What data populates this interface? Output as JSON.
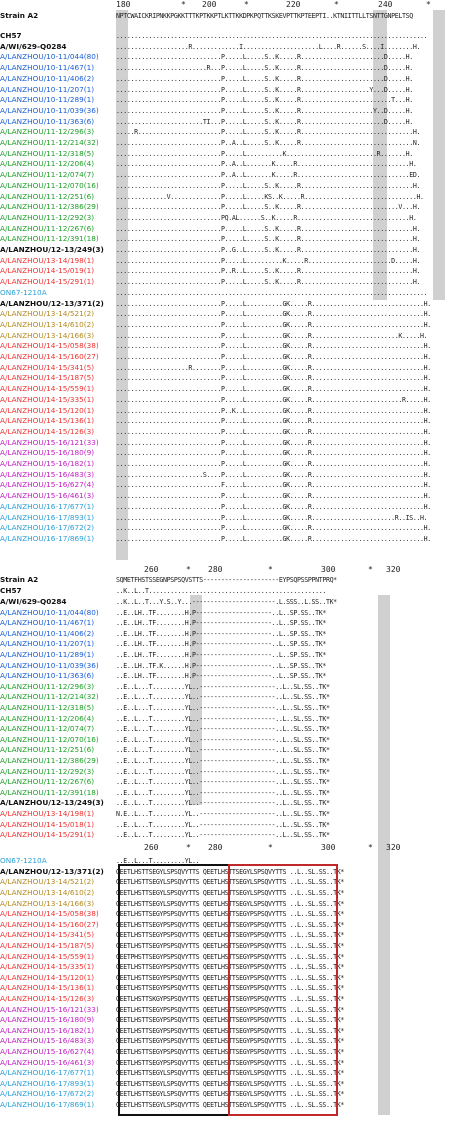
{
  "panel1": {
    "ruler": [
      "180",
      "*",
      "200",
      "*",
      "220",
      "*",
      "240",
      "*"
    ],
    "header_name": "Strain A2",
    "header_seq": "NPTCWAICKRIPNKKPGKKTTTKPTKKPTLKTTKKDPKPQTTKSKEVPTTKPTEEPTI..KTNIITTLLTSNTTGNPELTSQ",
    "rows": [
      {
        "name": "CH57",
        "color": "#111",
        "bold": true,
        "seq": "......................................................................................"
      },
      {
        "name": "A/WI/629-Q0284",
        "color": "#111",
        "bold": true,
        "seq": "....................R.............I.....................L....R......S....I........H."
      },
      {
        "name": "A/LANZHOU/10-11/044(80)",
        "color": "#1a5fd6",
        "seq": ".............................P.....L.....S..K.....R.......................D.....H."
      },
      {
        "name": "A/LANZHOU/10-11/467(1)",
        "color": "#1a5fd6",
        "seq": ".........................R...P.....L.....S..K.....R.......................D.....H."
      },
      {
        "name": "A/LANZHOU/10-11/406(2)",
        "color": "#1a5fd6",
        "seq": ".............................P.....L.....S..K.....R.......................D.....H."
      },
      {
        "name": "A/LANZHOU/10-11/207(1)",
        "color": "#1a5fd6",
        "seq": ".............................P.....L.....S..K.....R...................Y...D.....H."
      },
      {
        "name": "A/LANZHOU/10-11/289(1)",
        "color": "#1a5fd6",
        "seq": ".............................P.....L.....S..K.....R.........................T...H."
      },
      {
        "name": "A/LANZHOU/10-11/039(36)",
        "color": "#1a5fd6",
        "seq": ".............................P.....L.....S..K.....R....................Y..D.....H."
      },
      {
        "name": "A/LANZHOU/10-11/363(6)",
        "color": "#1a5fd6",
        "seq": "........................TI...P.....L.....S..K.....R.......................D.....H."
      },
      {
        "name": "A/LANZHOU/11-12/296(3)",
        "color": "#1fa02a",
        "seq": ".....R.......................P.....L.....S..K.....R...............................H."
      },
      {
        "name": "A/LANZHOU/11-12/214(32)",
        "color": "#1fa02a",
        "seq": ".............................P..A..L.....S..K.....R...............................N."
      },
      {
        "name": "A/LANZHOU/11-12/318(5)",
        "color": "#1fa02a",
        "seq": ".............................P.....L..........K.........................R.......H."
      },
      {
        "name": "A/LANZHOU/11-12/206(4)",
        "color": "#1fa02a",
        "seq": ".............................P..A..L.......K.....R...............................H."
      },
      {
        "name": "A/LANZHOU/11-12/074(7)",
        "color": "#1fa02a",
        "seq": ".............................P..A..L.......K.....R...............................ED."
      },
      {
        "name": "A/LANZHOU/11-12/070(16)",
        "color": "#1fa02a",
        "seq": ".............................P.....L.....S..K.....R...............................H."
      },
      {
        "name": "A/LANZHOU/11-12/251(6)",
        "color": "#1fa02a",
        "seq": "..............V..............P.....L.....KS..K.....R...............................H."
      },
      {
        "name": "A/LANZHOU/11-12/386(29)",
        "color": "#1fa02a",
        "seq": ".............................P.....L.....S..K.....R...........................V...H."
      },
      {
        "name": "A/LANZHOU/11-12/292(3)",
        "color": "#1fa02a",
        "seq": ".............................PQ.AL......S..K.....R...............................H."
      },
      {
        "name": "A/LANZHOU/11-12/267(6)",
        "color": "#1fa02a",
        "seq": ".............................P.....L.....S..K.....R...............................H."
      },
      {
        "name": "A/LANZHOU/11-12/391(18)",
        "color": "#1fa02a",
        "seq": ".............................P.....L.....S..K.....R...............................H."
      },
      {
        "name": "A/LANZHOU/12-13/249(3)",
        "color": "#111",
        "bold": true,
        "seq": ".............................P..G..L.....S..K.....R...............................H."
      },
      {
        "name": "A/LANZHOU/13-14/198(1)",
        "color": "#e33",
        "seq": ".............................P.....L..........K.....R.......................D.....H."
      },
      {
        "name": "A/LANZHOU/14-15/019(1)",
        "color": "#e33",
        "seq": ".............................P..R..L.....S..K.....R...............................H."
      },
      {
        "name": "A/LANZHOU/14-15/291(1)",
        "color": "#e33",
        "seq": ".............................P.....L.....S..K.....R...............................H."
      },
      {
        "name": "ON67-1210A",
        "color": "#2aa0d8",
        "seq": "......................................................................................"
      },
      {
        "name": "A/LANZHOU/12-13/371(2)",
        "color": "#111",
        "bold": true,
        "seq": ".............................P.....L..........GK.....R...............................H."
      },
      {
        "name": "A/LANZHOU/13-14/521(2)",
        "color": "#b58a1e",
        "seq": ".............................P.....L..........GK.....R...............................H."
      },
      {
        "name": "A/LANZHOU/13-14/610(2)",
        "color": "#b58a1e",
        "seq": ".............................P.....L..........GK.....R...............................H."
      },
      {
        "name": "A/LANZHOU/13-14/166(3)",
        "color": "#b58a1e",
        "seq": ".............................P.....L..........GK.....R........................K.....H."
      },
      {
        "name": "A/LANZHOU/14-15/058(38)",
        "color": "#e33",
        "seq": ".............................P.....L..........GK.....R...............................H."
      },
      {
        "name": "A/LANZHOU/14-15/160(27)",
        "color": "#e33",
        "seq": ".............................P.....L..........GK.....R...............................H."
      },
      {
        "name": "A/LANZHOU/14-15/341(5)",
        "color": "#e33",
        "seq": "....................R........P.....L..........GK.....R...............................H."
      },
      {
        "name": "A/LANZHOU/14-15/187(5)",
        "color": "#e33",
        "seq": ".............................P.....L..........GK.....R...............................H."
      },
      {
        "name": "A/LANZHOU/14-15/559(1)",
        "color": "#e33",
        "seq": ".............................P.....L..........GK.....R...............................H."
      },
      {
        "name": "A/LANZHOU/14-15/335(1)",
        "color": "#e33",
        "seq": ".............................P.....L..........GK.....R.........................R.....H."
      },
      {
        "name": "A/LANZHOU/14-15/120(1)",
        "color": "#e33",
        "seq": ".............................P..K..L..........GK.....R...............................H."
      },
      {
        "name": "A/LANZHOU/14-15/136(1)",
        "color": "#e33",
        "seq": ".............................P.....L..........GK.....R...............................H."
      },
      {
        "name": "A/LANZHOU/14-15/126(3)",
        "color": "#e33",
        "seq": ".............................P.....L..........GK.....R...............................H."
      },
      {
        "name": "A/LANZHOU/15-16/121(33)",
        "color": "#c21fc4",
        "seq": ".............................P.....L..........GK.....R...............................H."
      },
      {
        "name": "A/LANZHOU/15-16/180(9)",
        "color": "#c21fc4",
        "seq": ".............................P.....L..........GK.....R...............................H."
      },
      {
        "name": "A/LANZHOU/15-16/182(1)",
        "color": "#c21fc4",
        "seq": ".............................P.....L..........GK.....R...............................H."
      },
      {
        "name": "A/LANZHOU/15-16/483(3)",
        "color": "#c21fc4",
        "seq": "........................S....P.....L..........GK.....R...............................H."
      },
      {
        "name": "A/LANZHOU/15-16/627(4)",
        "color": "#c21fc4",
        "seq": ".............................F.....L..........GK.....R...............................H."
      },
      {
        "name": "A/LANZHOU/15-16/461(3)",
        "color": "#c21fc4",
        "seq": ".............................P.....L..........GK.....R...............................H."
      },
      {
        "name": "A/LANZHOU/16-17/677(1)",
        "color": "#2aa0d8",
        "seq": ".............................P.....L..........GK.....R...............................H."
      },
      {
        "name": "A/LANZHOU/16-17/893(1)",
        "color": "#2aa0d8",
        "seq": ".............................P.....L..........GK.....R.......................R..IS..H."
      },
      {
        "name": "A/LANZHOU/16-17/672(2)",
        "color": "#2aa0d8",
        "seq": ".............................P.....L..........GK.....R...............................H."
      },
      {
        "name": "A/LANZHOU/16-17/869(1)",
        "color": "#2aa0d8",
        "seq": ".............................P.....L..........GK.....R...............................H."
      }
    ]
  },
  "panel2": {
    "ruler_top": [
      "260",
      "*",
      "280",
      "*",
      "300",
      "*",
      "320"
    ],
    "ruler_mid": [
      "260",
      "*",
      "280",
      "*",
      "300",
      "*",
      "320"
    ],
    "header_name": "Strain A2",
    "header_seq": "SQMETFHSTSSEGNPSPSQVSTTS---------------------EYPSQPSSPPNTPRQ*",
    "ch57_name": "CH57",
    "ch57_seq": "..K..L..T.................................................",
    "rows_a": [
      {
        "name": "A/WI/629-Q0284",
        "color": "#111",
        "bold": true,
        "seq": "..K..L..T...Y.S..Y...-----------------------.L.SSS..L.SS..TK*"
      },
      {
        "name": "A/LANZHOU/10-11/044(80)",
        "color": "#1a5fd6",
        "seq": "..E..LH..TF........H.P---------------------..L..SP.SS..TK*"
      },
      {
        "name": "A/LANZHOU/10-11/467(1)",
        "color": "#1a5fd6",
        "seq": "..E..LH..TF........H.P---------------------..L..SP.SS..TK*"
      },
      {
        "name": "A/LANZHOU/10-11/406(2)",
        "color": "#1a5fd6",
        "seq": "..E..LH..TF........H.P---------------------..L..SP.SS..TK*"
      },
      {
        "name": "A/LANZHOU/10-11/207(1)",
        "color": "#1a5fd6",
        "seq": "..E..LH..TF........H.P---------------------..L..SP.SS..TK*"
      },
      {
        "name": "A/LANZHOU/10-11/289(1)",
        "color": "#1a5fd6",
        "seq": "..E..LH..TF........H.P---------------------..L..SP.SS..TK*"
      },
      {
        "name": "A/LANZHOU/10-11/039(36)",
        "color": "#1a5fd6",
        "seq": "..E..LH..TF.K......H.P---------------------..L..SP.SS..TK*"
      },
      {
        "name": "A/LANZHOU/10-11/363(6)",
        "color": "#1a5fd6",
        "seq": "..E..LH..TF........H.P---------------------..L..SP.SS..TK*"
      },
      {
        "name": "A/LANZHOU/11-12/296(3)",
        "color": "#1fa02a",
        "seq": "..E..L...T.........YL..---------------------..L..SL.SS..TK*"
      },
      {
        "name": "A/LANZHOU/11-12/214(32)",
        "color": "#1fa02a",
        "seq": "..E..L...T.........YL..---------------------..L..SL.SS..TK*"
      },
      {
        "name": "A/LANZHOU/11-12/318(5)",
        "color": "#1fa02a",
        "seq": "..E..L...T.........YL..---------------------..L..SL.SS..TK*"
      },
      {
        "name": "A/LANZHOU/11-12/206(4)",
        "color": "#1fa02a",
        "seq": "..E..L...T.........YL..---------------------..L..SL.SS..TK*"
      },
      {
        "name": "A/LANZHOU/11-12/074(7)",
        "color": "#1fa02a",
        "seq": "..E..L...T.........YL..---------------------..L..SL.SS..TK*"
      },
      {
        "name": "A/LANZHOU/11-12/070(16)",
        "color": "#1fa02a",
        "seq": "..E..L...T.........YL..---------------------..L..SL.SS..TK*"
      },
      {
        "name": "A/LANZHOU/11-12/251(6)",
        "color": "#1fa02a",
        "seq": "..E..L...T.........YL..---------------------..L..SL.SS..TK*"
      },
      {
        "name": "A/LANZHOU/11-12/386(29)",
        "color": "#1fa02a",
        "seq": "..E..L...T.........YL..---------------------..L..SL.SS..TK*"
      },
      {
        "name": "A/LANZHOU/11-12/292(3)",
        "color": "#1fa02a",
        "seq": "..E..L...T.........YL..---------------------..L..SL.SS..TK*"
      },
      {
        "name": "A/LANZHOU/11-12/267(6)",
        "color": "#1fa02a",
        "seq": "..E..L...T.........YL..---------------------..L..SL.SS..TK*"
      },
      {
        "name": "A/LANZHOU/11-12/391(18)",
        "color": "#1fa02a",
        "seq": "..E..L...T.........YL..---------------------..L..SL.SS..TK*"
      },
      {
        "name": "A/LANZHOU/12-13/249(3)",
        "color": "#111",
        "bold": true,
        "seq": "..E..L...T.........YL..---------------------..L..SL.SS..TK*"
      },
      {
        "name": "A/LANZHOU/13-14/198(1)",
        "color": "#e33",
        "seq": "N.E..L...T.........YL..---------------------..L..SL.SS..TK*"
      },
      {
        "name": "A/LANZHOU/14-15/018(1)",
        "color": "#e33",
        "seq": "..E..L...T.........YL..---------------------..L..SL.SS..TK*"
      },
      {
        "name": "A/LANZHOU/14-15/291(1)",
        "color": "#e33",
        "seq": "..E..L...T.........YL..---------------------..L..SL.SS..TK*"
      }
    ],
    "on67_name": "ON67-1210A",
    "on67_seq": "..E..L...T.........YL..",
    "rows_b": [
      {
        "name": "A/LANZHOU/12-13/371(2)",
        "color": "#111",
        "bold": true,
        "seq": "QEETLHSTTSEGYLSPSQVYTTS QEETLHSTTSEGYLSPSQVYTTS ..L..SL.SS..TK*"
      },
      {
        "name": "A/LANZHOU/13-14/521(2)",
        "color": "#b58a1e",
        "seq": "QEETLHSTTSEGYLSPSQVYTTS QEETLHSTTSEGYLSPSQVYTTS ..L..SL.SS..TK*"
      },
      {
        "name": "A/LANZHOU/13-14/610(2)",
        "color": "#b58a1e",
        "seq": "QEETLHSTTSEGYLSPSQVYTTS QEETLHSTTSEGYLSPSQVYTTS ..L..SL.SS..TK*"
      },
      {
        "name": "A/LANZHOU/13-14/166(3)",
        "color": "#b58a1e",
        "seq": "QEETLHSTTSEGYLSPSQVYTTS QEETLHSTTSEGYLSPSQVYTTS ..L..SL.SS..TK*"
      },
      {
        "name": "A/LANZHOU/14-15/058(38)",
        "color": "#e33",
        "seq": "QEETLHSTTSEGYPSPSQVYTTS QEETLHSTTSEGYPSPSQVYTTS ..L..SL.SS..TK*"
      },
      {
        "name": "A/LANZHOU/14-15/160(27)",
        "color": "#e33",
        "seq": "QEETLHSTTSEGYPSPSQVYTTS QEETLHSTTSEGYPSPSQVYTTS ..L..SL.SS..TK*"
      },
      {
        "name": "A/LANZHOU/14-15/341(5)",
        "color": "#e33",
        "seq": "QEETLHSTTSEGYPSPSQVYTTS QEETLHSTTSEGYPSPSQVYTTS ..L..SL.SS..TK*"
      },
      {
        "name": "A/LANZHOU/14-15/187(5)",
        "color": "#e33",
        "seq": "QEETLHSTTSEGYPSPSQVYTTS QEETLHSTTSEGYPSPSQVYTTS ..L..SL.SS..TK*"
      },
      {
        "name": "A/LANZHOU/14-15/559(1)",
        "color": "#e33",
        "seq": "QEETPHSTTSEGYPSPSQVYTTS QEETLHSTTSEGYPSPSQVYTTS ..L..SL.SS..TK*"
      },
      {
        "name": "A/LANZHOU/14-15/335(1)",
        "color": "#e33",
        "seq": "QEETLHSTTSEGYPSPSQVYTTS QEETLHSTTSEGYPSPSQVYTTS ..L..SL.SS..TK*"
      },
      {
        "name": "A/LANZHOU/14-15/120(1)",
        "color": "#e33",
        "seq": "QEETLHSTTSEGYPSPSQVYTTS QEETLHSTTSEGYPSPSQVYTTS ..L..SL.SS..TK*"
      },
      {
        "name": "A/LANZHOU/14-15/136(1)",
        "color": "#e33",
        "seq": "QEETLHSTTSEGYPSPSQVYTTS QEETLHSTTSEGYPSPSQVYTTS ..L..SL.SS..TK*"
      },
      {
        "name": "A/LANZHOU/14-15/126(3)",
        "color": "#e33",
        "seq": "QEETLHSTTSKGYPSPSQVYTTS QEETLHSTTSEGYPSPSQVYTTS ..L..SL.SS..TK*"
      },
      {
        "name": "A/LANZHOU/15-16/121(33)",
        "color": "#c21fc4",
        "seq": "QEETLHSTTSEGYPSPSQVYTTS QEETLHSTTSEGYPSPSQVYTTS ..L..SL.SS..TK*"
      },
      {
        "name": "A/LANZHOU/15-16/180(9)",
        "color": "#c21fc4",
        "seq": "QEETLHSTTSEGYPSPSQVYTTS QEETLHSTTSEGYPSPSQVYTTS ..L..SL.SS..TK*"
      },
      {
        "name": "A/LANZHOU/15-16/182(1)",
        "color": "#c21fc4",
        "seq": "QEETLHSTTSEGYPSPSQVYTTS QEETLHSTTSEGYPSPSQVYTTS ..L..SL.SS..TK*"
      },
      {
        "name": "A/LANZHOU/15-16/483(3)",
        "color": "#c21fc4",
        "seq": "QEETLHSTTSEGYPSPSQVYTTS QEETLHSTTSEGYPSPSQVYTTS ..L..SL.SS..TK*"
      },
      {
        "name": "A/LANZHOU/15-16/627(4)",
        "color": "#c21fc4",
        "seq": "QEETLHSTTSEGYPSPSQVYTTS QEETLHSTTSEGYPSPSQVYTTS ..L..SL.SS..TK*"
      },
      {
        "name": "A/LANZHOU/15-16/461(3)",
        "color": "#c21fc4",
        "seq": "QEETLHSTTSEGYPSPSQVYTTS QEETLHSTTSEGYPSPSQVYTTS ..L..SL.SS..TK*"
      },
      {
        "name": "A/LANZHOU/16-17/677(1)",
        "color": "#2aa0d8",
        "seq": "QEETLHSTTSEGYLSPSQVYTTS QEETLHSTTSEGYLSPSQVYTTS ..L..SL.SS..TK*"
      },
      {
        "name": "A/LANZHOU/16-17/893(1)",
        "color": "#2aa0d8",
        "seq": "QEETLHSTTSEGYLSPSQVYTTS QEETLHSTTSEGYLSPSQVYTTS ..L..SL.SS..TK*"
      },
      {
        "name": "A/LANZHOU/16-17/672(2)",
        "color": "#2aa0d8",
        "seq": "QEETLHSTTSEGYLSPSQVYTTS QEETLHSTTSEGYLSPSQVYTTS ..L..SL.SS..TK*"
      },
      {
        "name": "A/LANZHOU/16-17/869(1)",
        "color": "#2aa0d8",
        "seq": "QEETLHSTTSEGYLSPSQVYTTS QEETLHSTTSEGYLSPSQVYTTS ..L..SL.SS..TK*"
      }
    ]
  }
}
